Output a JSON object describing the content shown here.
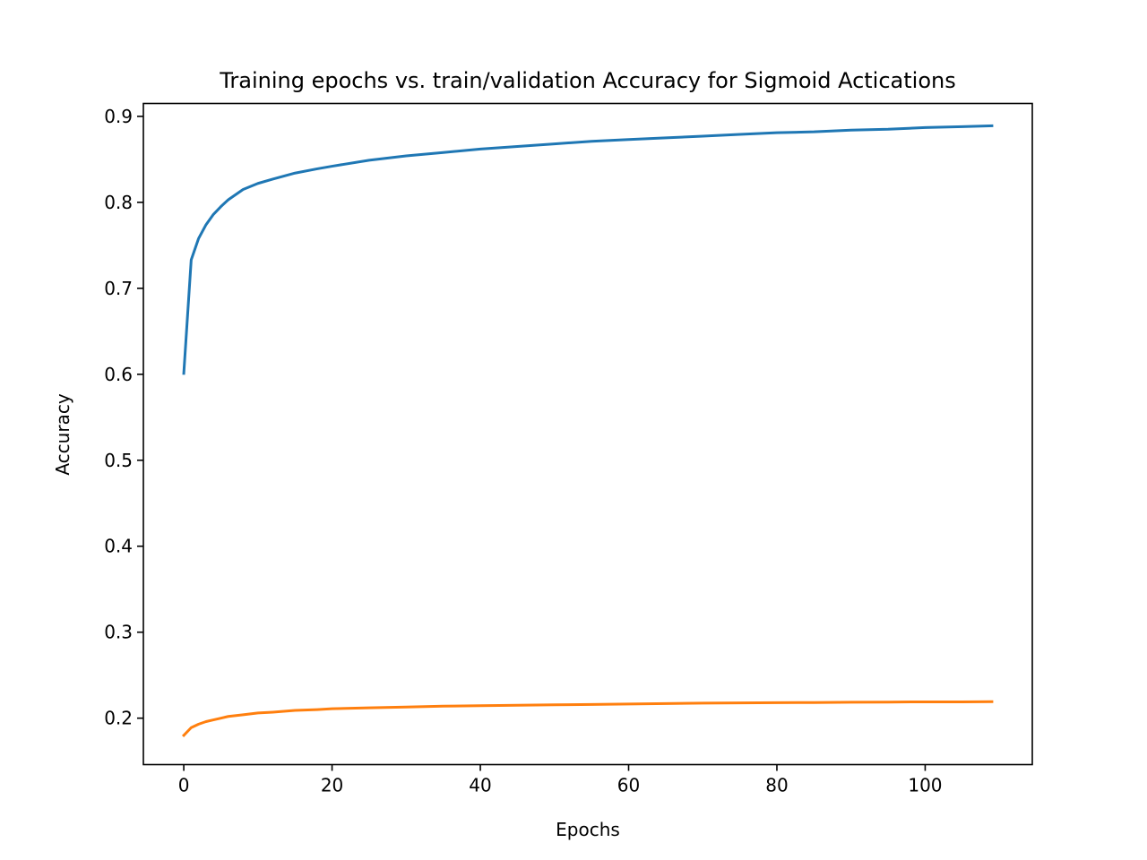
{
  "chart_data": {
    "type": "line",
    "title": "Training epochs vs. train/validation Accuracy for Sigmoid Actications",
    "xlabel": "Epochs",
    "ylabel": "Accuracy",
    "xlim": [
      -5.45,
      114.45
    ],
    "ylim": [
      0.146,
      0.915
    ],
    "xticks": [
      0,
      20,
      40,
      60,
      80,
      100
    ],
    "yticks": [
      0.2,
      0.3,
      0.4,
      0.5,
      0.6,
      0.7,
      0.8,
      0.9
    ],
    "xtick_labels": [
      "0",
      "20",
      "40",
      "60",
      "80",
      "100"
    ],
    "ytick_labels": [
      "0.2",
      "0.3",
      "0.4",
      "0.5",
      "0.6",
      "0.7",
      "0.8",
      "0.9"
    ],
    "grid": false,
    "series": [
      {
        "color": "#1f77b4",
        "x": [
          0,
          1,
          2,
          3,
          4,
          5,
          6,
          8,
          10,
          12,
          15,
          18,
          20,
          25,
          30,
          35,
          40,
          45,
          50,
          55,
          60,
          65,
          70,
          75,
          80,
          85,
          90,
          95,
          100,
          105,
          109
        ],
        "y": [
          0.601,
          0.733,
          0.758,
          0.774,
          0.786,
          0.795,
          0.803,
          0.815,
          0.822,
          0.827,
          0.834,
          0.839,
          0.842,
          0.849,
          0.854,
          0.858,
          0.862,
          0.865,
          0.868,
          0.871,
          0.873,
          0.875,
          0.877,
          0.879,
          0.881,
          0.882,
          0.884,
          0.885,
          0.887,
          0.888,
          0.889
        ]
      },
      {
        "color": "#ff7f0e",
        "x": [
          0,
          1,
          2,
          3,
          4,
          5,
          6,
          8,
          10,
          12,
          15,
          18,
          20,
          25,
          30,
          35,
          40,
          45,
          50,
          55,
          60,
          65,
          70,
          75,
          80,
          85,
          90,
          95,
          100,
          105,
          109
        ],
        "y": [
          0.18,
          0.189,
          0.193,
          0.196,
          0.198,
          0.2,
          0.202,
          0.204,
          0.206,
          0.207,
          0.209,
          0.21,
          0.211,
          0.212,
          0.213,
          0.214,
          0.2145,
          0.215,
          0.2155,
          0.216,
          0.2165,
          0.217,
          0.2175,
          0.2178,
          0.218,
          0.2182,
          0.2185,
          0.2187,
          0.219,
          0.219,
          0.2192
        ]
      }
    ]
  }
}
